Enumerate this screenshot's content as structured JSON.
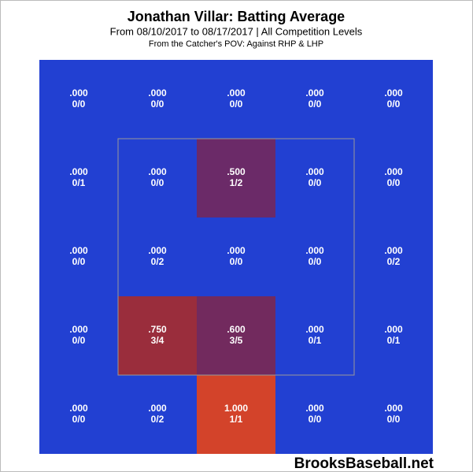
{
  "chart_data": {
    "type": "heatmap",
    "title": "Jonathan Villar: Batting Average",
    "subtitle": "From 08/10/2017 to 08/17/2017 | All Competition Levels",
    "note": "From the Catcher's POV:  Against RHP & LHP",
    "watermark": "BrooksBaseball.net",
    "values": [
      [
        0,
        0,
        0,
        0,
        0
      ],
      [
        0,
        0,
        0.5,
        0,
        0
      ],
      [
        0,
        0,
        0,
        0,
        0
      ],
      [
        0,
        0.75,
        0.6,
        0,
        0
      ],
      [
        0,
        0,
        1,
        0,
        0
      ]
    ],
    "value_labels": [
      [
        ".000",
        ".000",
        ".000",
        ".000",
        ".000"
      ],
      [
        ".000",
        ".000",
        ".500",
        ".000",
        ".000"
      ],
      [
        ".000",
        ".000",
        ".000",
        ".000",
        ".000"
      ],
      [
        ".000",
        ".750",
        ".600",
        ".000",
        ".000"
      ],
      [
        ".000",
        ".000",
        "1.000",
        ".000",
        ".000"
      ]
    ],
    "counts": [
      [
        "0/0",
        "0/0",
        "0/0",
        "0/0",
        "0/0"
      ],
      [
        "0/1",
        "0/0",
        "1/2",
        "0/0",
        "0/0"
      ],
      [
        "0/0",
        "0/2",
        "0/0",
        "0/0",
        "0/2"
      ],
      [
        "0/0",
        "3/4",
        "3/5",
        "0/1",
        "0/1"
      ],
      [
        "0/0",
        "0/2",
        "1/1",
        "0/0",
        "0/0"
      ]
    ],
    "colors": [
      [
        "#2240d2",
        "#2240d2",
        "#2240d2",
        "#2240d2",
        "#2240d2"
      ],
      [
        "#2240d2",
        "#2240d2",
        "#6b2a68",
        "#2240d2",
        "#2240d2"
      ],
      [
        "#2240d2",
        "#2240d2",
        "#2240d2",
        "#2240d2",
        "#2240d2"
      ],
      [
        "#2240d2",
        "#9a2d3c",
        "#722a5e",
        "#2240d2",
        "#2240d2"
      ],
      [
        "#2240d2",
        "#2240d2",
        "#d3432a",
        "#2240d2",
        "#2240d2"
      ]
    ]
  }
}
